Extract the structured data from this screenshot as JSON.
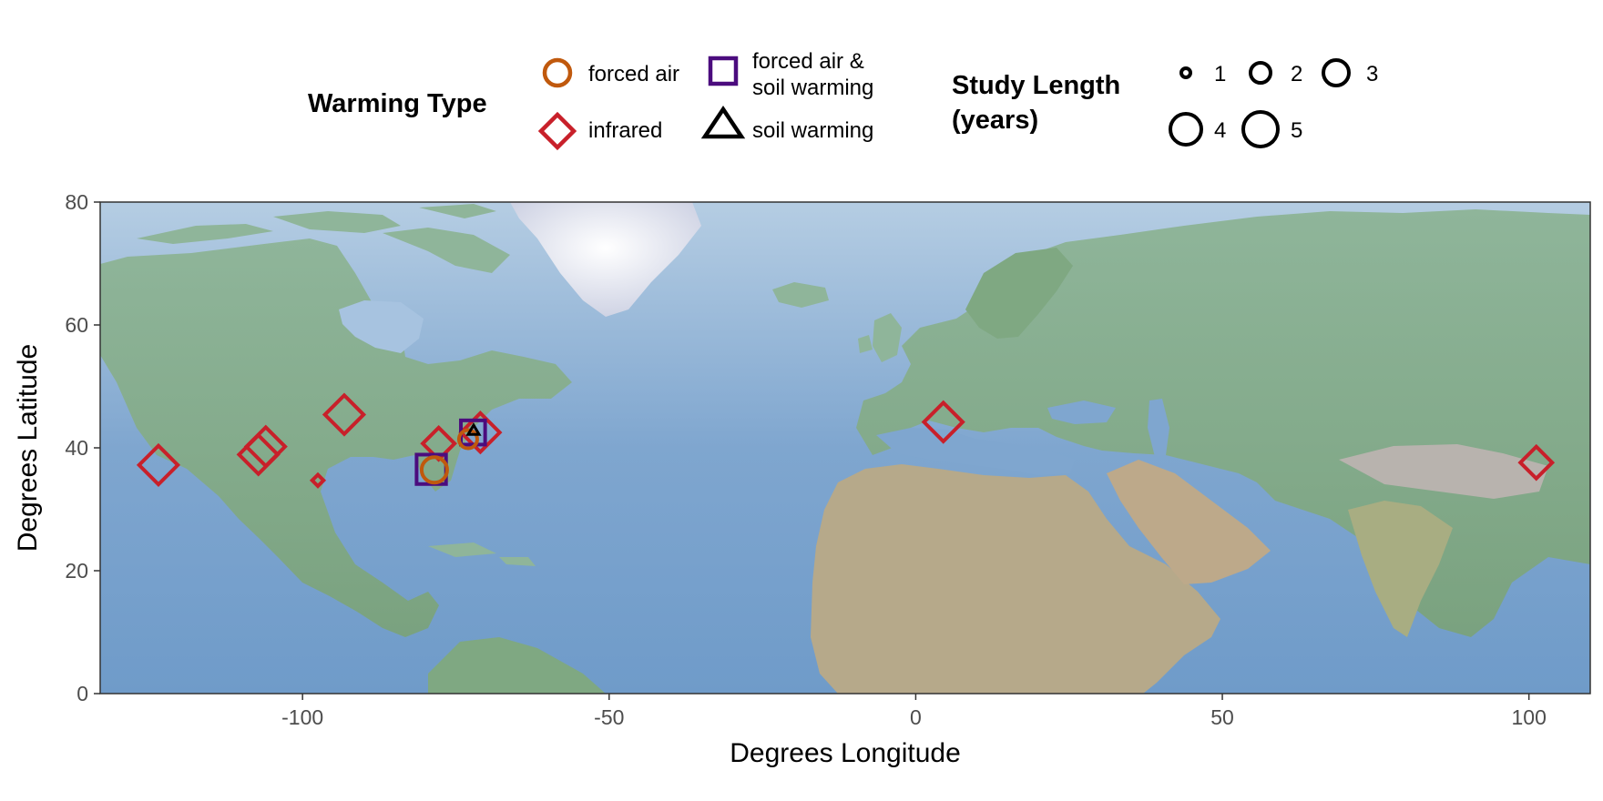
{
  "chart_data": {
    "type": "scatter",
    "title": "",
    "xlabel": "Degrees Longitude",
    "ylabel": "Degrees Latitude",
    "xlim": [
      -133,
      110
    ],
    "ylim": [
      0,
      80
    ],
    "x_ticks": [
      -100,
      -50,
      0,
      50,
      100
    ],
    "x_tick_labels": [
      "-100",
      "-50",
      "0",
      "50",
      "100"
    ],
    "y_ticks": [
      0,
      20,
      40,
      60,
      80
    ],
    "y_tick_labels": [
      "0",
      "20",
      "40",
      "60",
      "80"
    ],
    "grid": false,
    "legend_position": "top",
    "basemap": "shaded relief map of the Northern Hemisphere from western North America to East Asia",
    "legend": {
      "type_title": "Warming Type",
      "types": [
        {
          "key": "forced_air",
          "label": "forced air",
          "shape": "circle",
          "color": "#C0590D"
        },
        {
          "key": "forced_air_soil",
          "label": "forced air &\nsoil warming",
          "shape": "square",
          "color": "#4B0C7E"
        },
        {
          "key": "infrared",
          "label": "infrared",
          "shape": "diamond",
          "color": "#C8202A"
        },
        {
          "key": "soil",
          "label": "soil warming",
          "shape": "triangle",
          "color": "#000000"
        }
      ],
      "size_title": "Study Length\n(years)",
      "sizes": [
        {
          "value": 1,
          "label": "1"
        },
        {
          "value": 2,
          "label": "2"
        },
        {
          "value": 3,
          "label": "3"
        },
        {
          "value": 4,
          "label": "4"
        },
        {
          "value": 5,
          "label": "5"
        }
      ]
    },
    "points": [
      {
        "lon": -123.5,
        "lat": 37.2,
        "type": "infrared",
        "length": 4
      },
      {
        "lon": -107.2,
        "lat": 38.9,
        "type": "infrared",
        "length": 4
      },
      {
        "lon": -106.0,
        "lat": 40.2,
        "type": "infrared",
        "length": 4
      },
      {
        "lon": -97.5,
        "lat": 34.7,
        "type": "infrared",
        "length": 1
      },
      {
        "lon": -93.2,
        "lat": 45.4,
        "type": "infrared",
        "length": 4
      },
      {
        "lon": -77.8,
        "lat": 40.7,
        "type": "infrared",
        "length": 3
      },
      {
        "lon": -71.0,
        "lat": 42.5,
        "type": "infrared",
        "length": 4
      },
      {
        "lon": 4.5,
        "lat": 44.2,
        "type": "infrared",
        "length": 4
      },
      {
        "lon": 101.2,
        "lat": 37.6,
        "type": "infrared",
        "length": 3
      },
      {
        "lon": -79.0,
        "lat": 36.5,
        "type": "forced_air_soil",
        "length": 4
      },
      {
        "lon": -72.2,
        "lat": 42.5,
        "type": "forced_air_soil",
        "length": 3
      },
      {
        "lon": -78.5,
        "lat": 36.4,
        "type": "forced_air",
        "length": 3
      },
      {
        "lon": -73.0,
        "lat": 41.4,
        "type": "forced_air",
        "length": 2
      },
      {
        "lon": -72.1,
        "lat": 42.8,
        "type": "soil",
        "length": 1
      }
    ]
  }
}
